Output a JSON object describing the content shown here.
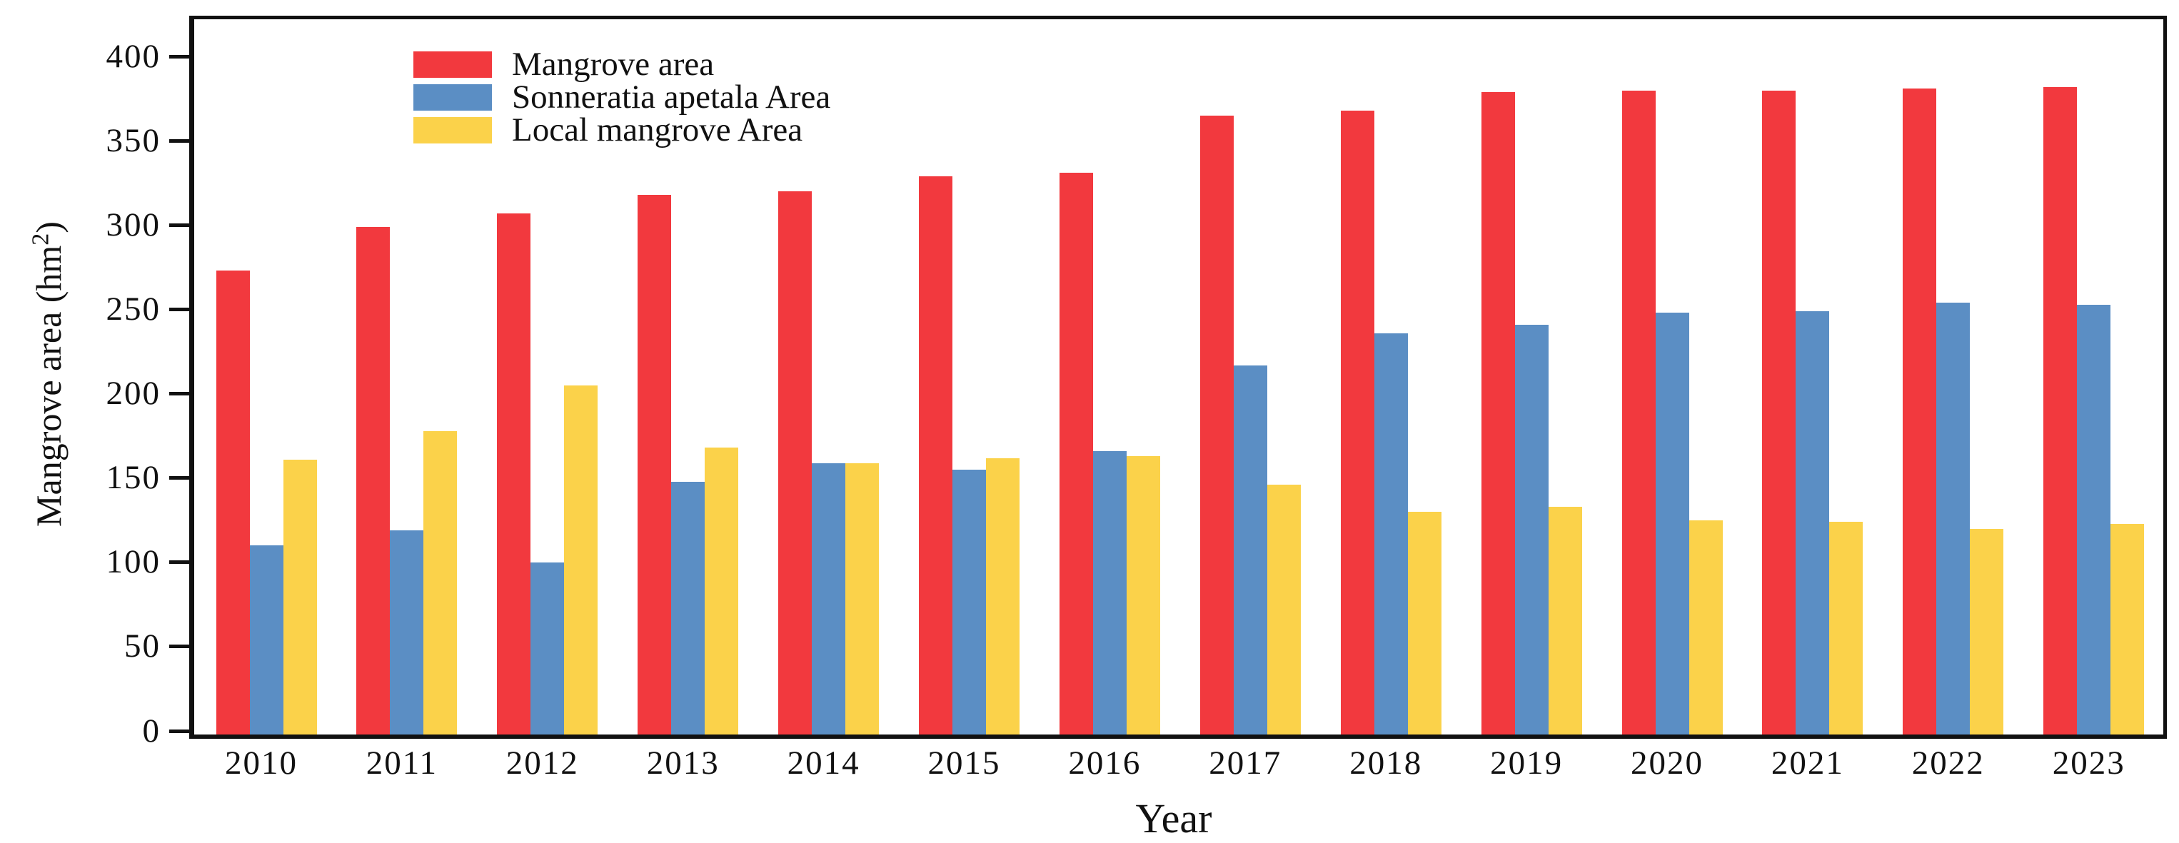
{
  "chart_data": {
    "type": "bar",
    "title": "",
    "xlabel": "Year",
    "ylabel_pre": "Mangrove area (hm",
    "ylabel_sup": "2",
    "ylabel_post": ")",
    "categories": [
      "2010",
      "2011",
      "2012",
      "2013",
      "2014",
      "2015",
      "2016",
      "2017",
      "2018",
      "2019",
      "2020",
      "2021",
      "2022",
      "2023"
    ],
    "series": [
      {
        "name": "Mangrove area",
        "color": "#F2393E",
        "values": [
          275,
          301,
          309,
          320,
          322,
          331,
          333,
          367,
          370,
          381,
          382,
          382,
          383,
          384
        ]
      },
      {
        "name": "Sonneratia apetala Area",
        "color": "#5B8EC4",
        "values": [
          112,
          121,
          102,
          150,
          161,
          157,
          168,
          219,
          238,
          243,
          250,
          251,
          256,
          255
        ]
      },
      {
        "name": "Local mangrove Area",
        "color": "#FBD24A",
        "values": [
          163,
          180,
          207,
          170,
          161,
          164,
          165,
          148,
          132,
          135,
          127,
          126,
          122,
          125
        ]
      }
    ],
    "y_ticks": [
      0,
      50,
      100,
      150,
      200,
      250,
      300,
      350,
      400
    ],
    "ylim": [
      0,
      424
    ],
    "grid": false,
    "legend_position": "upper-left",
    "axis_color": "#111111"
  }
}
